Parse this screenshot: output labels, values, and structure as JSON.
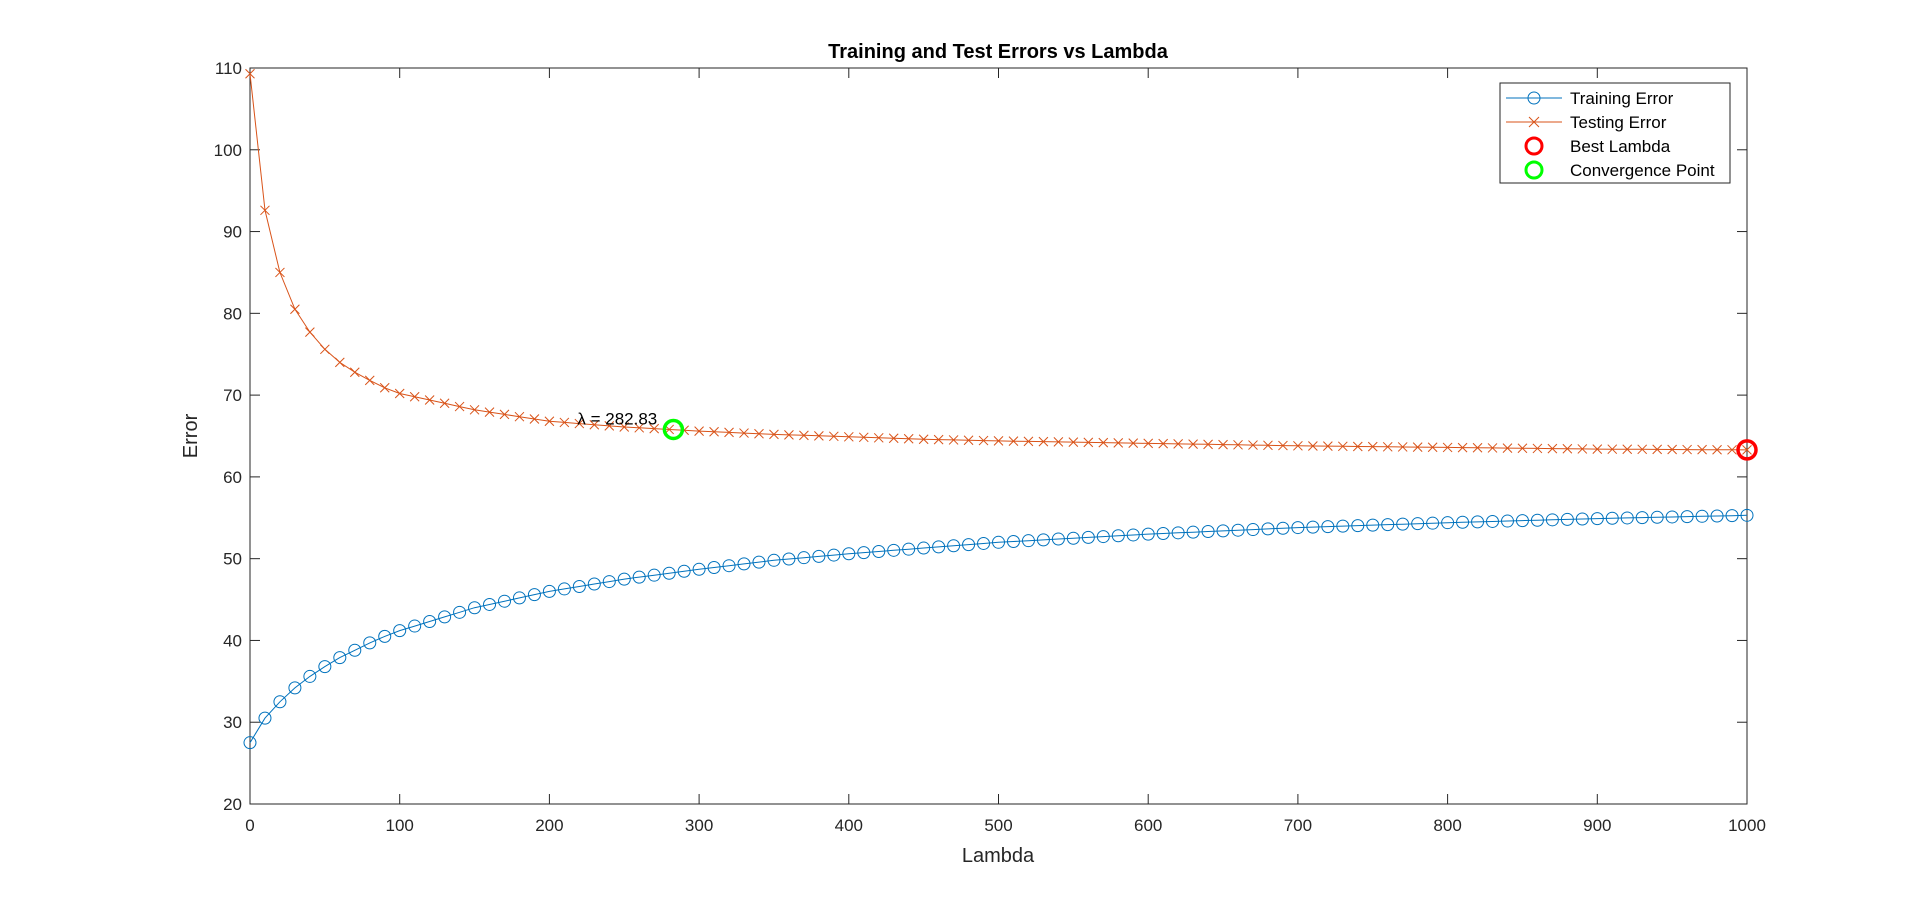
{
  "chart_data": {
    "type": "line",
    "title": "Training and Test Errors vs Lambda",
    "xlabel": "Lambda",
    "ylabel": "Error",
    "xlim": [
      0,
      1000
    ],
    "ylim": [
      20,
      110
    ],
    "xticks": [
      0,
      100,
      200,
      300,
      400,
      500,
      600,
      700,
      800,
      900,
      1000
    ],
    "yticks": [
      20,
      30,
      40,
      50,
      60,
      70,
      80,
      90,
      100,
      110
    ],
    "grid": false,
    "legend_position": "top-right",
    "x": {
      "start": 0,
      "step": 10,
      "count": 101
    },
    "series": [
      {
        "name": "Training Error",
        "color": "#0072BD",
        "marker": "o",
        "key_values": [
          [
            0,
            27.5
          ],
          [
            10,
            30.5
          ],
          [
            20,
            32.5
          ],
          [
            30,
            34.2
          ],
          [
            40,
            35.6
          ],
          [
            50,
            36.8
          ],
          [
            60,
            37.9
          ],
          [
            70,
            38.8
          ],
          [
            80,
            39.7
          ],
          [
            90,
            40.5
          ],
          [
            100,
            41.2
          ],
          [
            150,
            44.0
          ],
          [
            200,
            46.0
          ],
          [
            250,
            47.5
          ],
          [
            300,
            48.7
          ],
          [
            350,
            49.8
          ],
          [
            400,
            50.6
          ],
          [
            450,
            51.3
          ],
          [
            500,
            52.0
          ],
          [
            600,
            53.0
          ],
          [
            700,
            53.8
          ],
          [
            800,
            54.4
          ],
          [
            900,
            54.9
          ],
          [
            1000,
            55.3
          ]
        ]
      },
      {
        "name": "Testing Error",
        "color": "#D95319",
        "marker": "x",
        "key_values": [
          [
            0,
            109.3
          ],
          [
            10,
            92.6
          ],
          [
            20,
            85.0
          ],
          [
            30,
            80.5
          ],
          [
            40,
            77.7
          ],
          [
            50,
            75.6
          ],
          [
            60,
            74.0
          ],
          [
            70,
            72.8
          ],
          [
            80,
            71.8
          ],
          [
            90,
            70.9
          ],
          [
            100,
            70.2
          ],
          [
            150,
            68.2
          ],
          [
            200,
            66.8
          ],
          [
            250,
            66.1
          ],
          [
            300,
            65.6
          ],
          [
            350,
            65.2
          ],
          [
            400,
            64.9
          ],
          [
            450,
            64.6
          ],
          [
            500,
            64.4
          ],
          [
            600,
            64.1
          ],
          [
            700,
            63.8
          ],
          [
            800,
            63.6
          ],
          [
            900,
            63.4
          ],
          [
            1000,
            63.3
          ]
        ]
      }
    ],
    "points": [
      {
        "name": "Best Lambda",
        "x": 1000,
        "y": 63.3,
        "color": "#FF0000"
      },
      {
        "name": "Convergence Point",
        "x": 282.83,
        "y": 65.8,
        "color": "#00FF00"
      }
    ],
    "annotations": [
      {
        "text": "λ = 282.83",
        "x": 282.83,
        "y": 65.8
      }
    ]
  }
}
